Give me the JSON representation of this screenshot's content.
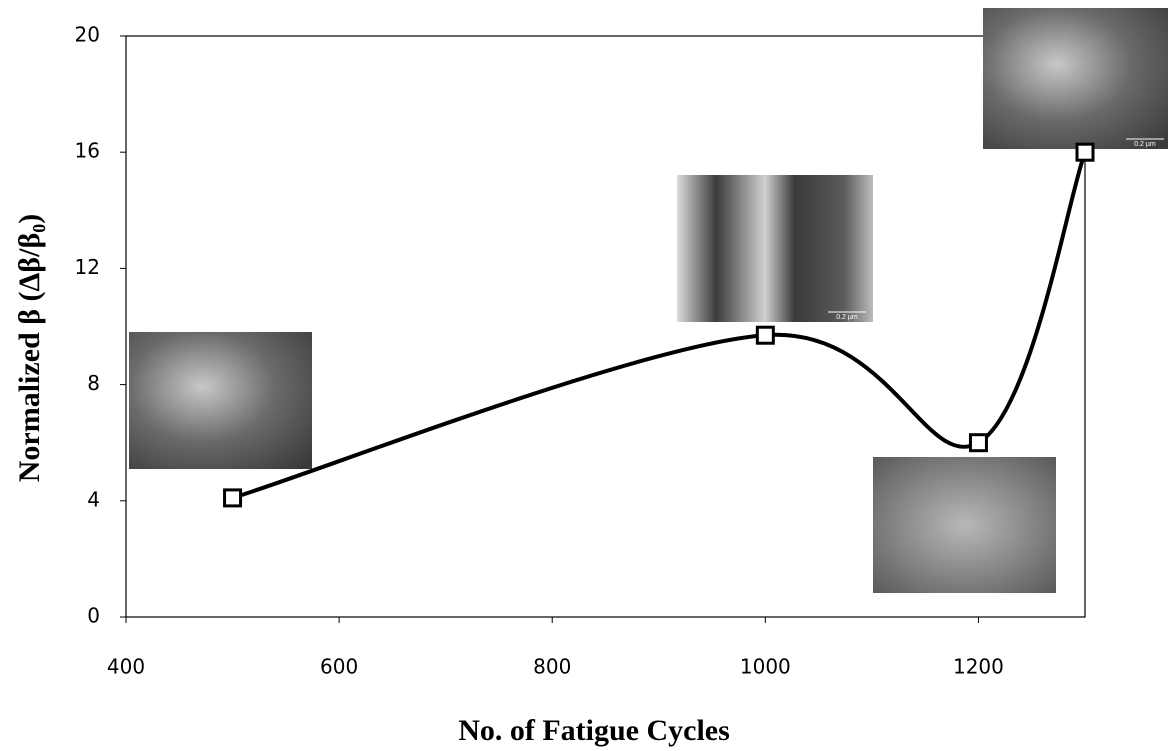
{
  "chart_data": {
    "type": "line",
    "x_label": "No. of Fatigue Cycles",
    "y_label": "Normalized β (Δβ/β₀)",
    "x": [
      500,
      1000,
      1200,
      1300
    ],
    "series": [
      {
        "color": "#000000",
        "values": [
          4.1,
          9.7,
          6.0,
          16.0
        ]
      }
    ],
    "xlim": [
      400,
      1300
    ],
    "xticks": [
      400,
      600,
      800,
      1000,
      1200
    ],
    "ylim": [
      0,
      20
    ],
    "yticks": [
      0,
      4,
      8,
      12,
      16,
      20
    ],
    "annotations": [
      "0.2 µm",
      "0.2 µm"
    ]
  }
}
